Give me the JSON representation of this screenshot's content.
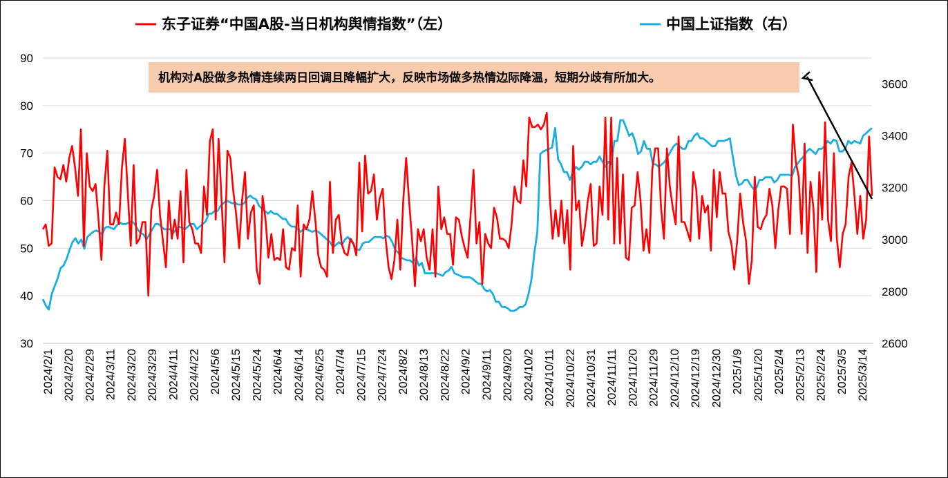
{
  "chart_data": {
    "type": "line",
    "title": "",
    "legend_position": "top",
    "grid": "horizontal",
    "x_tick_labels": [
      "2024/2/1",
      "2024/2/20",
      "2024/2/29",
      "2024/3/11",
      "2024/3/20",
      "2024/3/29",
      "2024/4/11",
      "2024/4/22",
      "2024/5/6",
      "2024/5/15",
      "2024/5/24",
      "2024/6/4",
      "2024/6/14",
      "2024/6/25",
      "2024/7/4",
      "2024/7/15",
      "2024/7/24",
      "2024/8/2",
      "2024/8/13",
      "2024/8/22",
      "2024/9/2",
      "2024/9/11",
      "2024/9/20",
      "2024/10/2",
      "2024/10/11",
      "2024/10/22",
      "2024/10/31",
      "2024/11/11",
      "2024/11/20",
      "2024/11/29",
      "2024/12/10",
      "2024/12/19",
      "2024/12/30",
      "2025/1/9",
      "2025/1/20",
      "2025/2/4",
      "2025/2/13",
      "2025/2/24",
      "2025/3/5",
      "2025/3/14"
    ],
    "y_left": {
      "ticks": [
        "30",
        "40",
        "50",
        "60",
        "70",
        "80",
        "90"
      ],
      "range": [
        30,
        90
      ]
    },
    "y_right": {
      "ticks": [
        "2600",
        "2800",
        "3000",
        "3200",
        "3400",
        "3600"
      ],
      "range": [
        2600,
        3700
      ]
    },
    "annotation": "机构对A股做多热情连续两日回调且降幅扩大，反映市场做多热情边际降温，短期分歧有所加大。",
    "series": [
      {
        "name": "东子证券“中国A股-当日机构舆情指数”（左）",
        "axis": "left",
        "color": "#ff0000",
        "values": [
          54,
          55,
          50.5,
          51,
          67,
          65,
          64.5,
          67.5,
          64,
          69,
          71.5,
          67,
          61,
          75,
          50.5,
          70,
          63,
          62,
          63.5,
          56,
          47.5,
          63,
          70.5,
          55,
          55,
          57.5,
          55,
          67,
          73,
          61.5,
          50.5,
          67.5,
          51,
          52,
          55.5,
          55.5,
          40,
          58,
          61,
          66.5,
          57,
          51.5,
          46,
          60,
          52,
          56,
          52,
          62,
          47,
          66.5,
          55.5,
          54,
          51,
          51,
          49,
          63,
          57,
          72.5,
          75,
          56,
          73,
          60,
          47,
          70.5,
          69,
          62,
          57,
          50,
          60,
          66,
          52,
          57.5,
          59,
          45.5,
          42.5,
          61,
          56,
          48,
          53,
          47.5,
          48,
          47.5,
          54,
          46,
          45.5,
          50,
          49.5,
          59,
          44,
          55,
          54,
          56,
          62,
          56,
          48.5,
          46,
          45.5,
          44,
          64,
          49,
          56,
          57,
          51,
          49,
          48.5,
          52,
          51,
          48.5,
          68,
          53.5,
          69.5,
          61.5,
          62,
          65.5,
          56,
          60.5,
          62.5,
          52,
          46,
          43.5,
          47.5,
          56,
          45.5,
          60,
          69,
          60,
          52,
          42,
          54,
          51.5,
          54,
          48,
          45.5,
          54,
          44,
          63,
          54,
          56.5,
          53,
          53,
          46.5,
          56.5,
          56,
          52.5,
          50,
          48,
          57,
          66.5,
          51,
          55.5,
          42.5,
          53,
          51,
          50,
          58.5,
          56.5,
          52,
          52,
          51.5,
          50,
          55,
          63,
          60,
          59.5,
          68.5,
          63,
          77.5,
          75.5,
          75.5,
          76,
          75,
          76,
          78.5,
          61,
          52,
          58,
          52.5,
          60,
          51,
          58,
          45.5,
          71.5,
          58,
          60,
          50.5,
          54.5,
          60,
          63.5,
          50.5,
          51,
          63,
          57,
          77.5,
          56,
          77.5,
          51,
          69,
          51,
          65.5,
          48,
          47.5,
          58.5,
          59,
          66,
          60,
          49.5,
          54,
          49,
          66.5,
          71,
          71,
          58.5,
          52,
          71,
          63,
          58.5,
          55,
          73.5,
          55.5,
          55.5,
          53.5,
          51.5,
          66,
          62.5,
          52,
          61,
          57.5,
          59,
          49.5,
          66.5,
          56.5,
          66,
          61.5,
          61.5,
          53.5,
          51,
          45.5,
          51.5,
          61.5,
          55.5,
          51.5,
          42.5,
          47.5,
          65,
          54.5,
          54,
          56,
          57,
          62.5,
          59,
          50,
          58,
          63,
          63,
          62.5,
          53,
          76,
          68,
          65,
          53,
          72,
          49,
          64,
          58.5,
          45,
          66,
          56,
          76.5,
          56,
          51.5,
          70,
          52,
          46,
          53,
          55,
          65,
          68,
          61,
          53,
          61,
          52,
          56,
          73.5,
          61
        ]
      },
      {
        "name": "中国上证指数（右）",
        "axis": "right",
        "color": "#1aaee0",
        "values": [
          2770,
          2745,
          2730,
          2790,
          2820,
          2850,
          2890,
          2900,
          2925,
          2960,
          2990,
          3005,
          2985,
          3000,
          2965,
          3010,
          3020,
          3030,
          3035,
          3030,
          3020,
          3045,
          3050,
          3045,
          3040,
          3055,
          3065,
          3060,
          3060,
          3065,
          3070,
          3060,
          3040,
          3025,
          3020,
          3000,
          3020,
          3040,
          3060,
          3060,
          3050,
          3040,
          3040,
          3040,
          3025,
          3040,
          3050,
          3045,
          3040,
          3050,
          3060,
          3060,
          3040,
          3050,
          3060,
          3070,
          3100,
          3100,
          3110,
          3110,
          3130,
          3140,
          3150,
          3145,
          3140,
          3140,
          3135,
          3135,
          3140,
          3160,
          3170,
          3160,
          3155,
          3130,
          3120,
          3110,
          3100,
          3110,
          3100,
          3100,
          3090,
          3080,
          3080,
          3060,
          3050,
          3050,
          3040,
          3030,
          3040,
          3040,
          3035,
          3030,
          3035,
          3030,
          3020,
          3010,
          3000,
          2990,
          2970,
          2980,
          2990,
          2980,
          3000,
          3010,
          2995,
          2980,
          2960,
          2960,
          2985,
          2990,
          2990,
          3000,
          3010,
          3010,
          3010,
          3005,
          3015,
          3010,
          2990,
          2960,
          2950,
          2930,
          2925,
          2920,
          2920,
          2910,
          2930,
          2900,
          2910,
          2870,
          2870,
          2870,
          2870,
          2870,
          2865,
          2860,
          2875,
          2880,
          2895,
          2870,
          2865,
          2860,
          2855,
          2855,
          2855,
          2850,
          2840,
          2830,
          2830,
          2810,
          2800,
          2805,
          2790,
          2760,
          2760,
          2740,
          2740,
          2735,
          2725,
          2725,
          2730,
          2740,
          2740,
          2750,
          2790,
          2845,
          2950,
          3030,
          3330,
          3340,
          3345,
          3350,
          3355,
          3430,
          3310,
          3290,
          3260,
          3260,
          3230,
          3260,
          3280,
          3270,
          3280,
          3300,
          3300,
          3290,
          3300,
          3300,
          3320,
          3300,
          3280,
          3300,
          3290,
          3380,
          3380,
          3460,
          3460,
          3430,
          3400,
          3410,
          3380,
          3330,
          3340,
          3380,
          3350,
          3350,
          3290,
          3290,
          3280,
          3290,
          3300,
          3320,
          3340,
          3360,
          3370,
          3360,
          3350,
          3350,
          3380,
          3380,
          3400,
          3410,
          3390,
          3390,
          3380,
          3370,
          3360,
          3360,
          3380,
          3380,
          3380,
          3385,
          3390,
          3320,
          3250,
          3210,
          3215,
          3230,
          3230,
          3210,
          3195,
          3200,
          3230,
          3230,
          3240,
          3240,
          3240,
          3220,
          3230,
          3250,
          3250,
          3250,
          3250,
          3245,
          3280,
          3295,
          3310,
          3320,
          3340,
          3350,
          3340,
          3330,
          3350,
          3350,
          3360,
          3380,
          3370,
          3385,
          3380,
          3340,
          3340,
          3350,
          3380,
          3370,
          3380,
          3375,
          3370,
          3400,
          3410,
          3420,
          3430
        ]
      }
    ]
  }
}
